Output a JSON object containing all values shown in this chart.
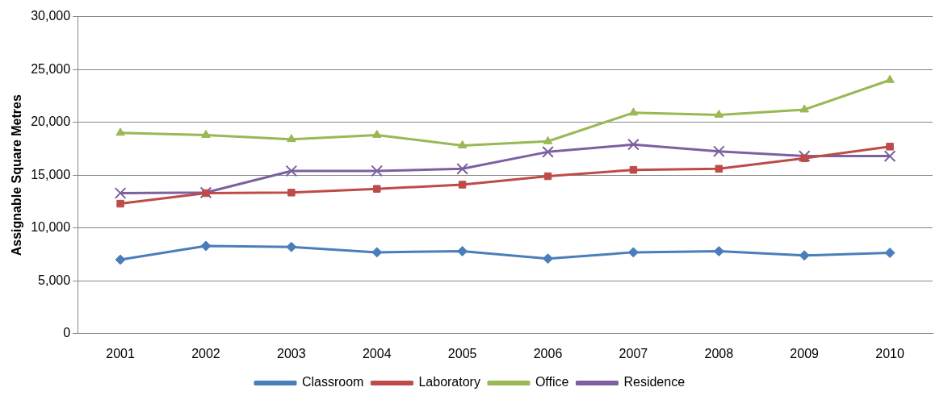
{
  "chart_data": {
    "type": "line",
    "ylabel": "Assignable Square Metres",
    "categories": [
      "2001",
      "2002",
      "2003",
      "2004",
      "2005",
      "2006",
      "2007",
      "2008",
      "2009",
      "2010"
    ],
    "ylim": [
      0,
      30000
    ],
    "yticks": [
      0,
      {
        "value": 5000,
        "label": "5,000"
      },
      {
        "value": 10000,
        "label": "10,000"
      },
      {
        "value": 15000,
        "label": "15,000"
      },
      {
        "value": 20000,
        "label": "20,000"
      },
      {
        "value": 25000,
        "label": "25,000"
      },
      {
        "value": 30000,
        "label": "30,000"
      }
    ],
    "grid": "y",
    "legend": "bottom",
    "series": [
      {
        "name": "Classroom",
        "color": "#4a7ebb",
        "marker": "diamond",
        "values": [
          7000,
          8300,
          8200,
          7700,
          7800,
          7100,
          7700,
          7800,
          7400,
          7650
        ]
      },
      {
        "name": "Laboratory",
        "color": "#be4b48",
        "marker": "square",
        "values": [
          12300,
          13300,
          13350,
          13700,
          14100,
          14900,
          15500,
          15600,
          16600,
          17700
        ]
      },
      {
        "name": "Office",
        "color": "#98b954",
        "marker": "triangle",
        "values": [
          19000,
          18800,
          18400,
          18800,
          17800,
          18200,
          20900,
          20700,
          21200,
          24000
        ]
      },
      {
        "name": "Residence",
        "color": "#7d60a0",
        "marker": "cross",
        "values": [
          13300,
          13350,
          15400,
          15400,
          15600,
          17200,
          17900,
          17250,
          16800,
          16800
        ]
      }
    ]
  }
}
